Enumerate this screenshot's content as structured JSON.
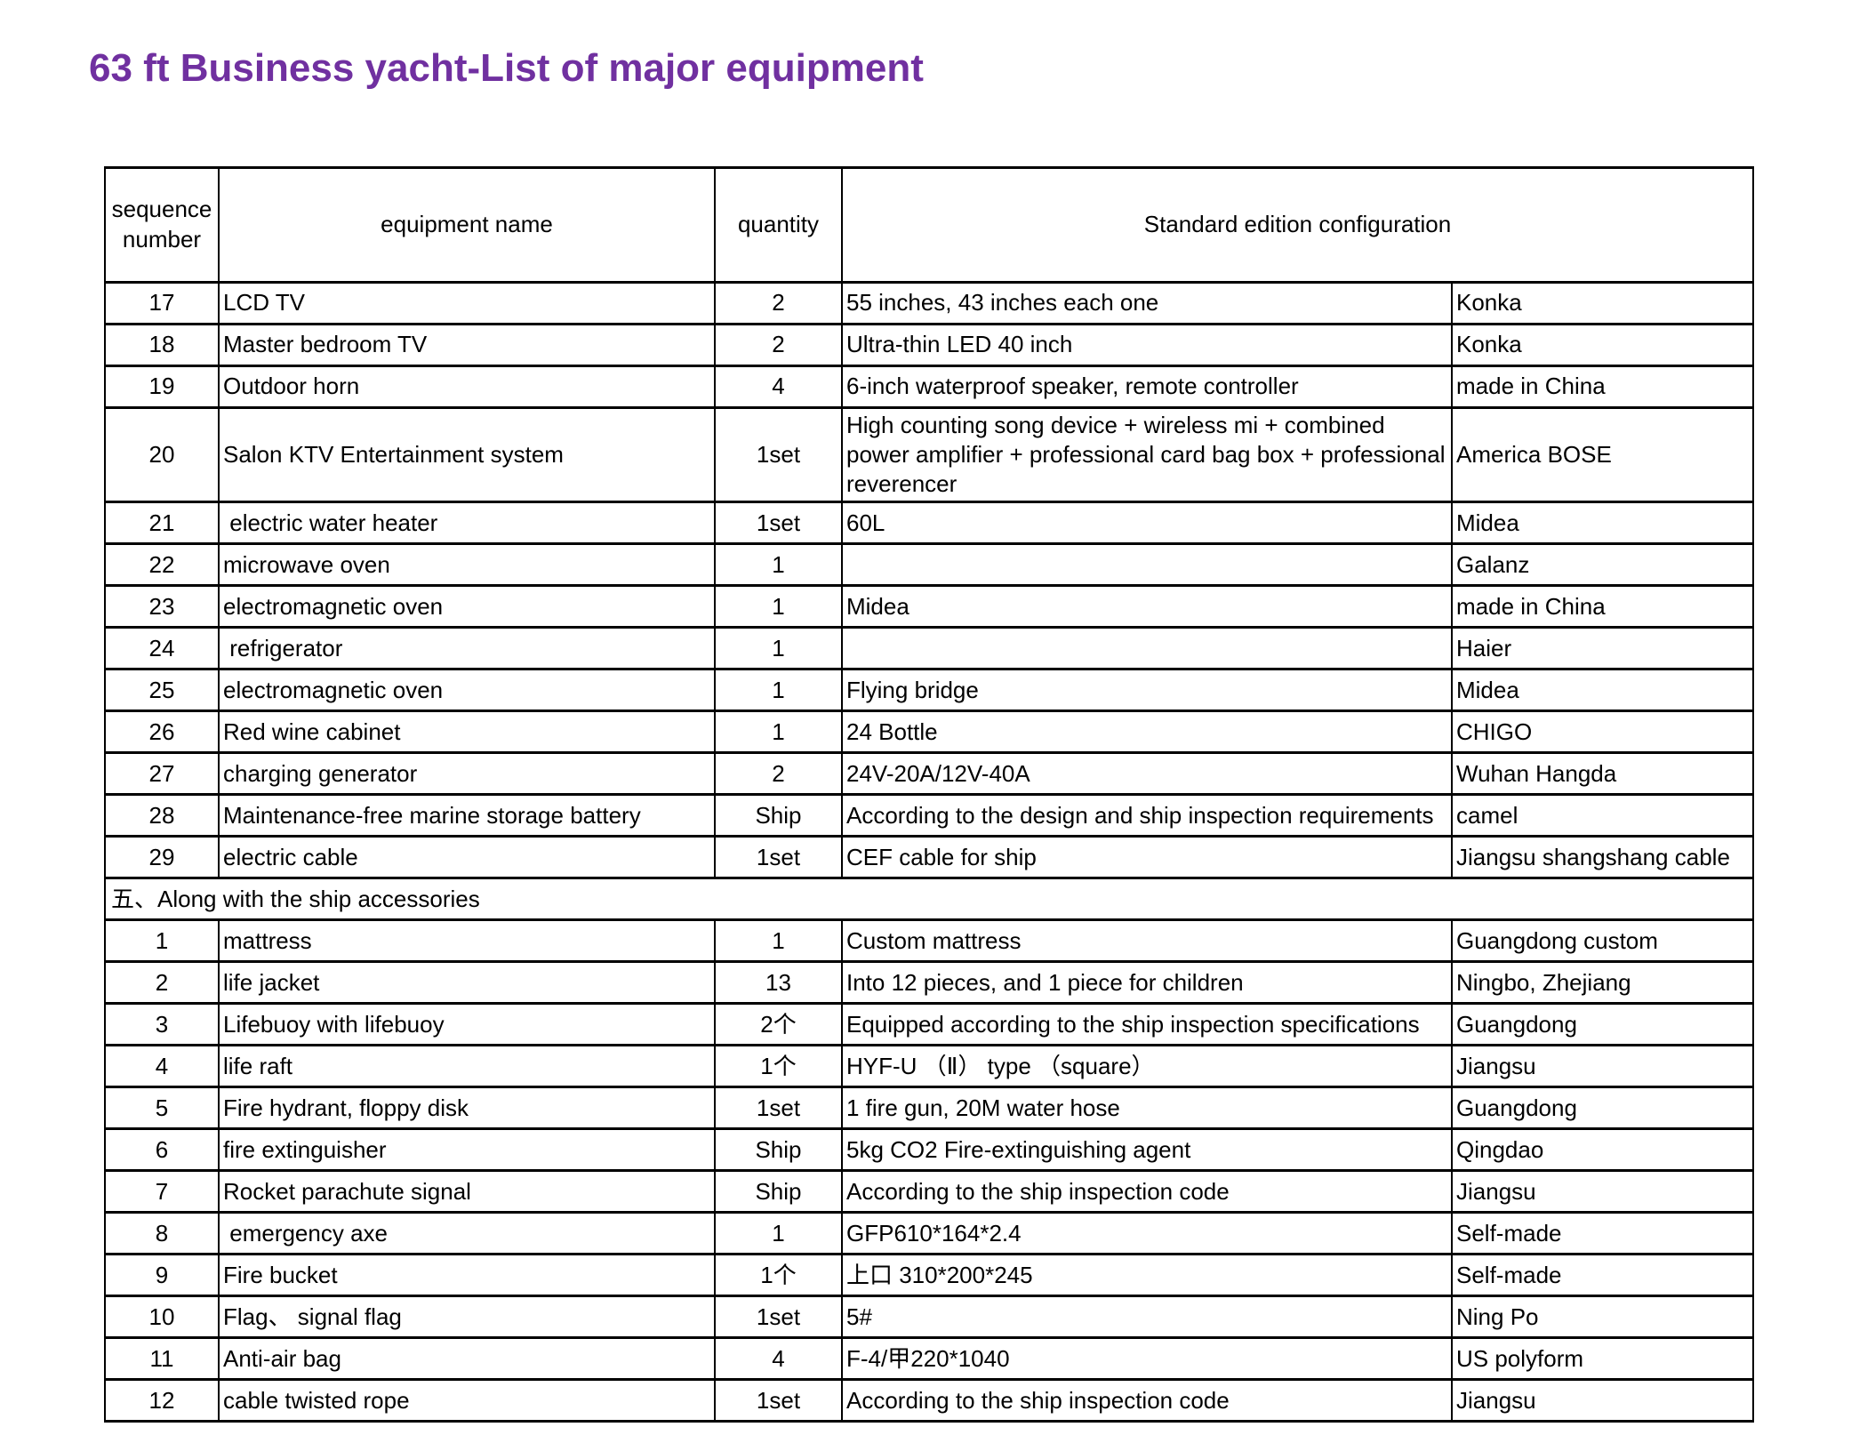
{
  "page": {
    "title": "63 ft Business yacht-List of major equipment",
    "title_color": "#7030A0",
    "background_color": "#ffffff",
    "table_border_color": "#000000"
  },
  "table": {
    "headers": {
      "sequence": "sequence number",
      "equipment": "equipment name",
      "quantity": "quantity",
      "configuration": "Standard edition configuration"
    },
    "sections": [
      {
        "header": "",
        "rows": [
          {
            "seq": "17",
            "name": "LCD TV",
            "qty": "2",
            "config": "55 inches, 43 inches each one",
            "brand": "Konka"
          },
          {
            "seq": "18",
            "name": "Master bedroom TV",
            "qty": "2",
            "config": "Ultra-thin LED 40 inch",
            "brand": "Konka"
          },
          {
            "seq": "19",
            "name": "Outdoor horn",
            "qty": "4",
            "config": "6-inch waterproof speaker, remote controller",
            "brand": "made in China"
          },
          {
            "seq": "20",
            "name": "Salon KTV Entertainment system",
            "qty": "1set",
            "config": "High counting song device + wireless mi + combined power amplifier + professional card bag box + professional reverencer",
            "brand": "America BOSE"
          },
          {
            "seq": "21",
            "name": " electric water heater",
            "qty": "1set",
            "config": "60L",
            "brand": "Midea"
          },
          {
            "seq": "22",
            "name": "microwave oven",
            "qty": "1",
            "config": "",
            "brand": "Galanz"
          },
          {
            "seq": "23",
            "name": "electromagnetic oven",
            "qty": "1",
            "config": "Midea",
            "brand": "made in China"
          },
          {
            "seq": "24",
            "name": " refrigerator",
            "qty": "1",
            "config": "",
            "brand": "Haier"
          },
          {
            "seq": "25",
            "name": "electromagnetic oven",
            "qty": "1",
            "config": "Flying bridge",
            "brand": "Midea"
          },
          {
            "seq": "26",
            "name": "Red wine cabinet",
            "qty": "1",
            "config": "24 Bottle",
            "brand": "CHIGO"
          },
          {
            "seq": "27",
            "name": "charging generator",
            "qty": "2",
            "config": "24V-20A/12V-40A",
            "brand": "Wuhan Hangda"
          },
          {
            "seq": "28",
            "name": "Maintenance-free marine storage battery",
            "qty": "Ship",
            "config": "According to the design and ship inspection requirements",
            "brand": "camel"
          },
          {
            "seq": "29",
            "name": "electric cable",
            "qty": "1set",
            "config": "CEF cable for ship",
            "brand": "Jiangsu shangshang cable"
          }
        ]
      },
      {
        "header": "五、Along with the ship accessories",
        "rows": [
          {
            "seq": "1",
            "name": "mattress",
            "qty": "1",
            "config": "Custom mattress",
            "brand": "Guangdong custom"
          },
          {
            "seq": "2",
            "name": "life jacket",
            "qty": "13",
            "config": "Into 12 pieces, and 1 piece for children",
            "brand": "Ningbo, Zhejiang"
          },
          {
            "seq": "3",
            "name": "Lifebuoy with lifebuoy",
            "qty": "2个",
            "config": "Equipped according to the ship inspection specifications",
            "brand": "Guangdong"
          },
          {
            "seq": "4",
            "name": "life raft",
            "qty": "1个",
            "config": "HYF-U （Ⅱ） type （square）",
            "brand": "Jiangsu"
          },
          {
            "seq": "5",
            "name": "Fire hydrant, floppy disk",
            "qty": "1set",
            "config": "1 fire gun, 20M water hose",
            "brand": "Guangdong"
          },
          {
            "seq": "6",
            "name": "fire extinguisher",
            "qty": "Ship",
            "config": "5kg CO2 Fire-extinguishing agent",
            "brand": "Qingdao"
          },
          {
            "seq": "7",
            "name": "Rocket parachute signal",
            "qty": "Ship",
            "config": "According to the ship inspection code",
            "brand": "Jiangsu"
          },
          {
            "seq": "8",
            "name": " emergency axe",
            "qty": "1",
            "config": "GFP610*164*2.4",
            "brand": "Self-made"
          },
          {
            "seq": "9",
            "name": "Fire bucket",
            "qty": "1个",
            "config": "上口 310*200*245",
            "brand": "Self-made"
          },
          {
            "seq": "10",
            "name": "Flag、 signal flag",
            "qty": "1set",
            "config": "5#",
            "brand": "Ning Po"
          },
          {
            "seq": "11",
            "name": "Anti-air bag",
            "qty": "4",
            "config": "F-4/甲220*1040",
            "brand": "US polyform"
          },
          {
            "seq": "12",
            "name": "cable twisted rope",
            "qty": "1set",
            "config": "According to the ship inspection code",
            "brand": "Jiangsu"
          }
        ]
      }
    ]
  }
}
